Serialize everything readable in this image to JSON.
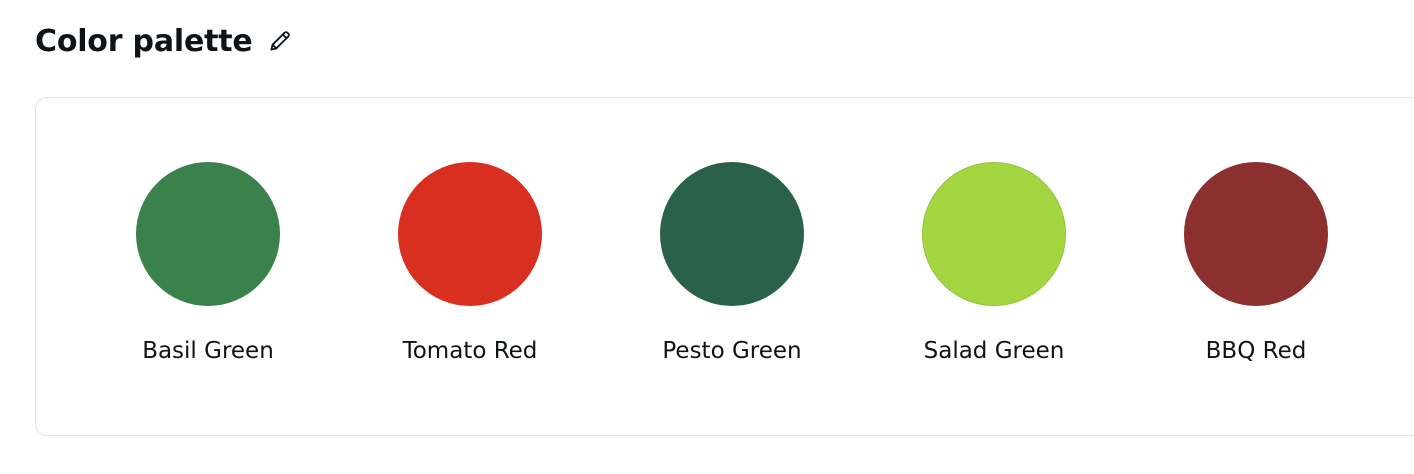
{
  "header": {
    "title": "Color palette"
  },
  "icons": {
    "edit": "pencil-icon"
  },
  "palette": [
    {
      "name": "Basil Green",
      "color": "#3a814b"
    },
    {
      "name": "Tomato Red",
      "color": "#d82f20"
    },
    {
      "name": "Pesto Green",
      "color": "#2a614a"
    },
    {
      "name": "Salad Green",
      "color": "#a3d641"
    },
    {
      "name": "BBQ Red",
      "color": "#8b2f2f"
    }
  ]
}
